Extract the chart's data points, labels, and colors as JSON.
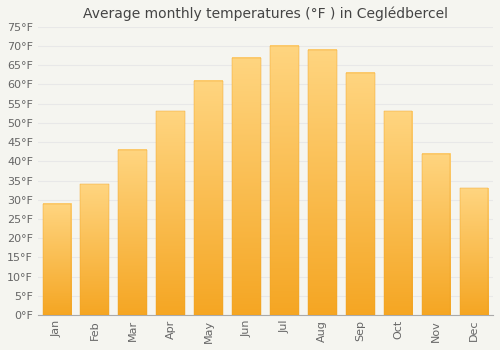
{
  "months": [
    "Jan",
    "Feb",
    "Mar",
    "Apr",
    "May",
    "Jun",
    "Jul",
    "Aug",
    "Sep",
    "Oct",
    "Nov",
    "Dec"
  ],
  "values": [
    29,
    34,
    43,
    53,
    61,
    67,
    70,
    69,
    63,
    53,
    42,
    33
  ],
  "bar_color_bottom": "#F5A623",
  "bar_color_top": "#FFD580",
  "title": "Average monthly temperatures (°F ) in Ceglédbercel",
  "ylim": [
    0,
    75
  ],
  "yticks": [
    0,
    5,
    10,
    15,
    20,
    25,
    30,
    35,
    40,
    45,
    50,
    55,
    60,
    65,
    70,
    75
  ],
  "background_color": "#F5F5F0",
  "plot_bg_color": "#F5F5F0",
  "grid_color": "#E8E8E8",
  "title_fontsize": 10,
  "tick_fontsize": 8,
  "tick_color": "#666666",
  "font_family": "DejaVu Sans"
}
